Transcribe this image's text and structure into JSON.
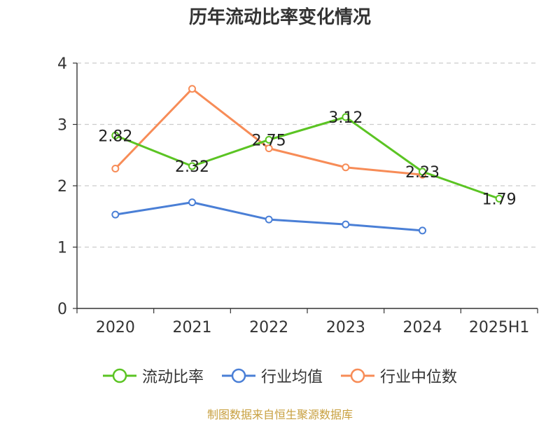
{
  "chart_data": {
    "type": "line",
    "title": "历年流动比率变化情况",
    "categories": [
      "2020",
      "2021",
      "2022",
      "2023",
      "2024",
      "2025H1"
    ],
    "ylim": [
      0,
      4
    ],
    "yticks": [
      "0",
      "1",
      "2",
      "3",
      "4"
    ],
    "grid": true,
    "legend_position": "bottom",
    "series": [
      {
        "name": "流动比率",
        "color": "#5bc423",
        "values": [
          2.82,
          2.32,
          2.75,
          3.12,
          2.23,
          1.79
        ],
        "labels": [
          "2.82",
          "2.32",
          "2.75",
          "3.12",
          "2.23",
          "1.79"
        ]
      },
      {
        "name": "行业均值",
        "color": "#4a7fd6",
        "values": [
          1.53,
          1.73,
          1.45,
          1.37,
          1.27,
          null
        ]
      },
      {
        "name": "行业中位数",
        "color": "#f78c57",
        "values": [
          2.28,
          3.58,
          2.61,
          2.3,
          2.18,
          null
        ]
      }
    ]
  },
  "source": "制图数据来自恒生聚源数据库"
}
